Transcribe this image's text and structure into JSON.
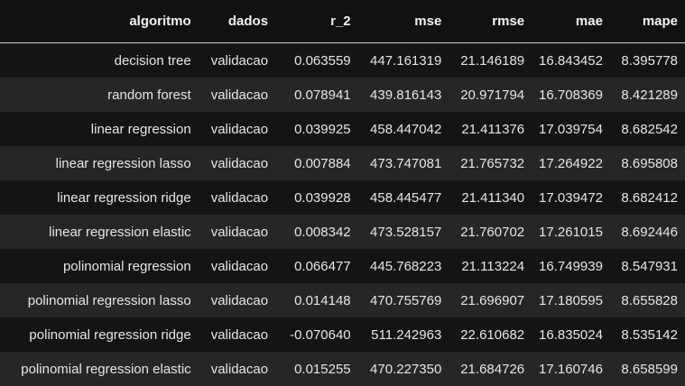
{
  "table": {
    "columns": [
      "algoritmo",
      "dados",
      "r_2",
      "mse",
      "rmse",
      "mae",
      "mape"
    ],
    "rows": [
      [
        "decision tree",
        "validacao",
        "0.063559",
        "447.161319",
        "21.146189",
        "16.843452",
        "8.395778"
      ],
      [
        "random forest",
        "validacao",
        "0.078941",
        "439.816143",
        "20.971794",
        "16.708369",
        "8.421289"
      ],
      [
        "linear regression",
        "validacao",
        "0.039925",
        "458.447042",
        "21.411376",
        "17.039754",
        "8.682542"
      ],
      [
        "linear regression lasso",
        "validacao",
        "0.007884",
        "473.747081",
        "21.765732",
        "17.264922",
        "8.695808"
      ],
      [
        "linear regression ridge",
        "validacao",
        "0.039928",
        "458.445477",
        "21.411340",
        "17.039472",
        "8.682412"
      ],
      [
        "linear regression elastic",
        "validacao",
        "0.008342",
        "473.528157",
        "21.760702",
        "17.261015",
        "8.692446"
      ],
      [
        "polinomial regression",
        "validacao",
        "0.066477",
        "445.768223",
        "21.113224",
        "16.749939",
        "8.547931"
      ],
      [
        "polinomial regression lasso",
        "validacao",
        "0.014148",
        "470.755769",
        "21.696907",
        "17.180595",
        "8.655828"
      ],
      [
        "polinomial regression ridge",
        "validacao",
        "-0.070640",
        "511.242963",
        "22.610682",
        "16.835024",
        "8.535142"
      ],
      [
        "polinomial regression elastic",
        "validacao",
        "0.015255",
        "470.227350",
        "21.684726",
        "17.160746",
        "8.658599"
      ]
    ]
  },
  "colors": {
    "background": "#111111",
    "row_odd": "#141414",
    "row_even": "#262626",
    "text": "#e6e6e6",
    "header_rule": "#cfcfcf"
  }
}
